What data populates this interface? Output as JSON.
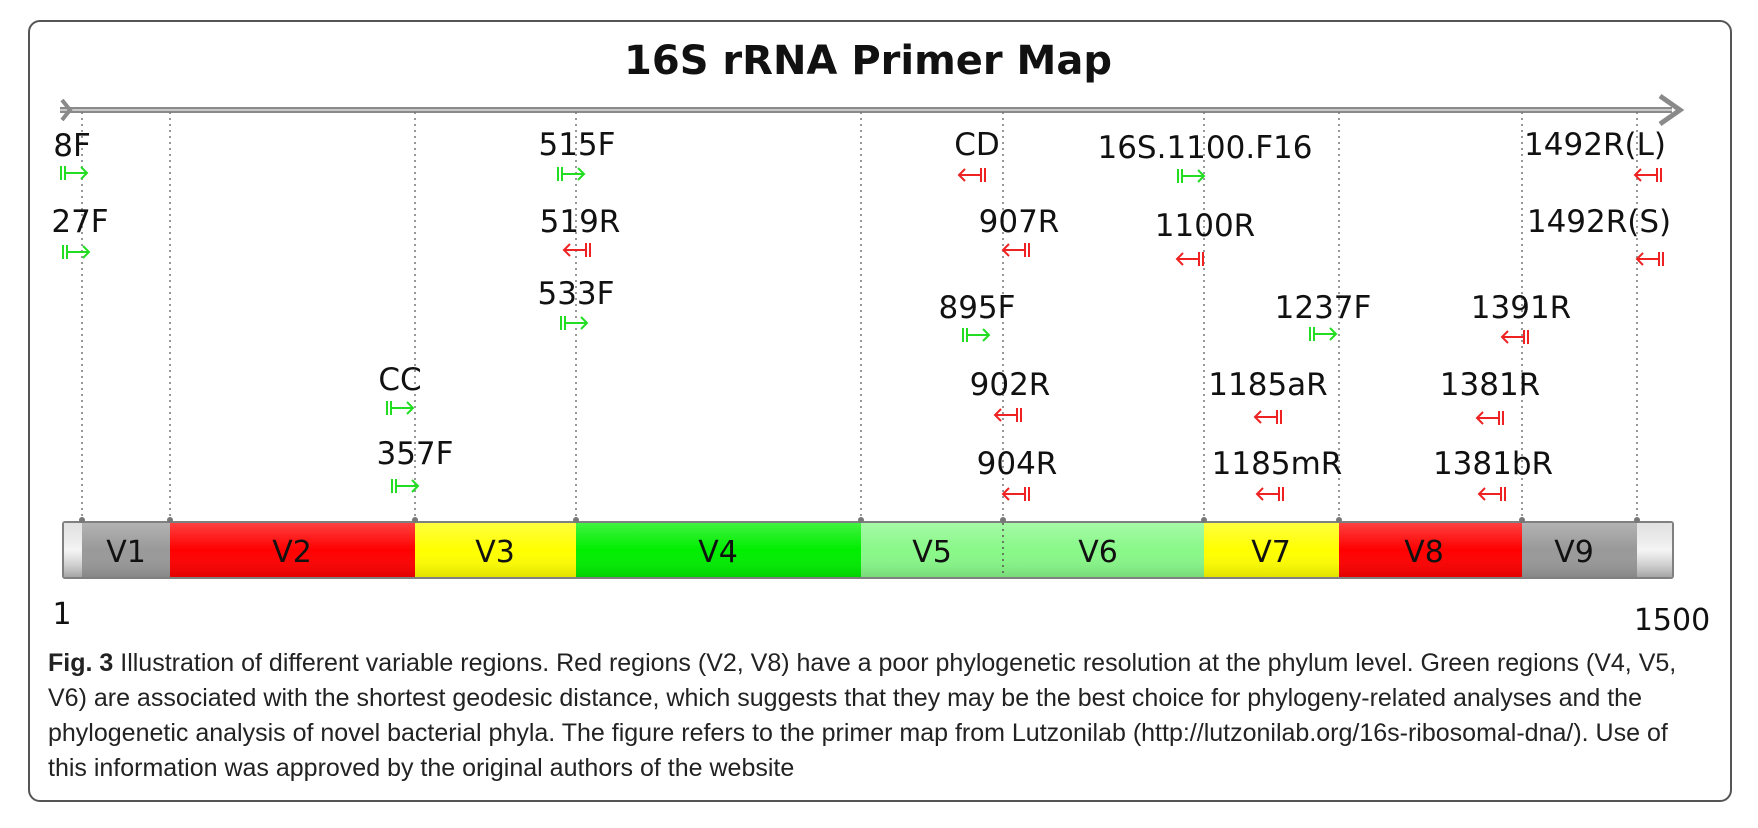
{
  "title": "16S rRNA Primer Map",
  "axis": {
    "start_label": "1",
    "end_label": "1500"
  },
  "colors": {
    "forward_primer": "#22dd22",
    "reverse_primer": "#ee2222",
    "gray_region": "#999999",
    "red_region": "#ff0000",
    "yellow_region": "#ffff00",
    "green_region": "#00ee00",
    "light_green_region": "#88f888"
  },
  "regions": [
    {
      "name": "V1",
      "color": "#999999"
    },
    {
      "name": "V2",
      "color": "#ff0000"
    },
    {
      "name": "V3",
      "color": "#ffff00"
    },
    {
      "name": "V4",
      "color": "#00ee00"
    },
    {
      "name": "V5",
      "color": "#88f888"
    },
    {
      "name": "V6",
      "color": "#88f888"
    },
    {
      "name": "V7",
      "color": "#ffff00"
    },
    {
      "name": "V8",
      "color": "#ff0000"
    },
    {
      "name": "V9",
      "color": "#999999"
    }
  ],
  "primers": [
    {
      "name": "8F",
      "direction": "forward"
    },
    {
      "name": "27F",
      "direction": "forward"
    },
    {
      "name": "CC",
      "direction": "forward"
    },
    {
      "name": "357F",
      "direction": "forward"
    },
    {
      "name": "515F",
      "direction": "forward"
    },
    {
      "name": "519R",
      "direction": "reverse"
    },
    {
      "name": "533F",
      "direction": "forward"
    },
    {
      "name": "CD",
      "direction": "reverse"
    },
    {
      "name": "907R",
      "direction": "reverse"
    },
    {
      "name": "895F",
      "direction": "forward"
    },
    {
      "name": "902R",
      "direction": "reverse"
    },
    {
      "name": "904R",
      "direction": "reverse"
    },
    {
      "name": "16S.1100.F16",
      "direction": "forward"
    },
    {
      "name": "1100R",
      "direction": "reverse"
    },
    {
      "name": "1237F",
      "direction": "forward"
    },
    {
      "name": "1185aR",
      "direction": "reverse"
    },
    {
      "name": "1185mR",
      "direction": "reverse"
    },
    {
      "name": "1492R(L)",
      "direction": "reverse"
    },
    {
      "name": "1492R(S)",
      "direction": "reverse"
    },
    {
      "name": "1391R",
      "direction": "reverse"
    },
    {
      "name": "1381R",
      "direction": "reverse"
    },
    {
      "name": "1381bR",
      "direction": "reverse"
    }
  ],
  "caption": {
    "label": "Fig. 3",
    "text": " Illustration of different variable regions. Red regions (V2, V8) have a poor phylogenetic resolution at the phylum level. Green regions (V4, V5, V6) are associated with the shortest geodesic distance, which suggests that they may be the best choice for phylogeny-related analyses and the phylogenetic analysis of novel bacterial phyla. The figure refers to the primer map from Lutzonilab (http://lutzonilab.org/16s-ribosomal-dna/). Use of this information was approved by the original authors of the website"
  }
}
